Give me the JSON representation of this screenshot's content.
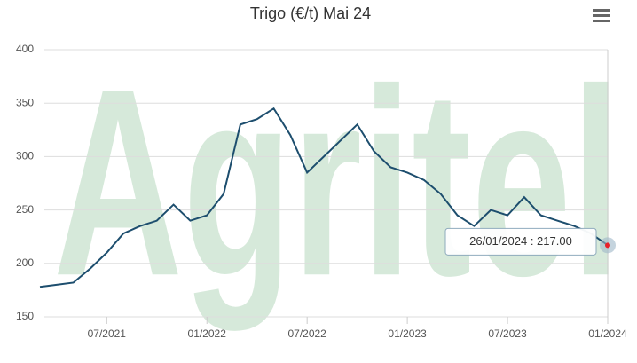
{
  "chart_data": {
    "type": "line",
    "title": "Trigo (€/t) Mai 24",
    "watermark": "Agritel",
    "x": [
      "03/2021",
      "04/2021",
      "05/2021",
      "06/2021",
      "07/2021",
      "08/2021",
      "09/2021",
      "10/2021",
      "11/2021",
      "12/2021",
      "01/2022",
      "02/2022",
      "03/2022",
      "04/2022",
      "05/2022",
      "06/2022",
      "07/2022",
      "08/2022",
      "09/2022",
      "10/2022",
      "11/2022",
      "12/2022",
      "01/2023",
      "02/2023",
      "03/2023",
      "04/2023",
      "05/2023",
      "06/2023",
      "07/2023",
      "08/2023",
      "09/2023",
      "10/2023",
      "11/2023",
      "12/2023",
      "01/2024"
    ],
    "series": [
      {
        "name": "Trigo",
        "color": "#1d4e6e",
        "values": [
          178,
          180,
          182,
          195,
          210,
          228,
          235,
          240,
          255,
          240,
          245,
          265,
          330,
          335,
          345,
          320,
          285,
          300,
          315,
          330,
          305,
          290,
          285,
          278,
          265,
          245,
          235,
          250,
          245,
          262,
          245,
          240,
          235,
          228,
          217
        ]
      }
    ],
    "xticks": [
      "07/2021",
      "01/2022",
      "07/2022",
      "01/2023",
      "07/2023",
      "01/2024"
    ],
    "ylim": [
      150,
      400
    ],
    "yticks": [
      150,
      200,
      250,
      300,
      350,
      400
    ],
    "grid": true,
    "tooltip": "26/01/2024 : 217.00"
  }
}
